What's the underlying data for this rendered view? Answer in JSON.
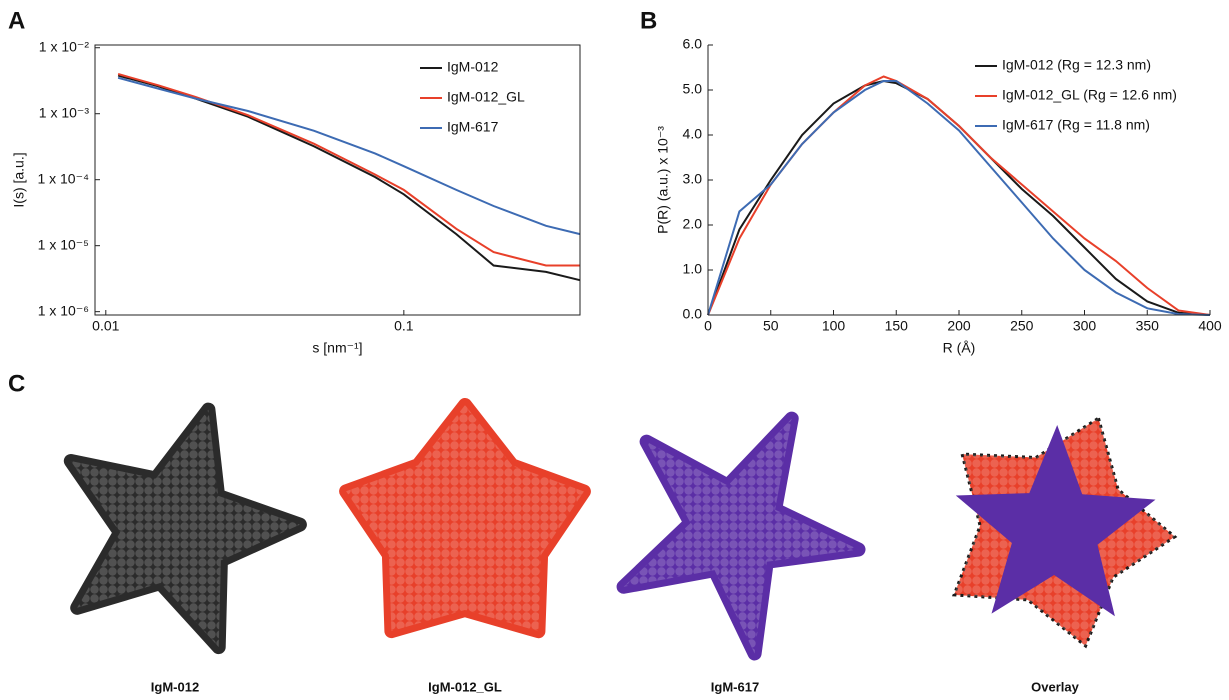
{
  "chart_data": [
    {
      "type": "line",
      "panel": "A",
      "xlabel": "s [nm⁻¹]",
      "ylabel": "I(s) [a.u.]",
      "xscale": "log",
      "yscale": "log",
      "frame": true,
      "xlim": [
        0.0092,
        0.39
      ],
      "ylim": [
        8.9e-07,
        0.011
      ],
      "xticks": [
        0.01,
        0.1
      ],
      "yticks": [
        {
          "value": 1e-06,
          "label": "1 x 10⁻⁶"
        },
        {
          "value": 1e-05,
          "label": "1 x 10⁻⁵"
        },
        {
          "value": 0.0001,
          "label": "1 x 10⁻⁴"
        },
        {
          "value": 0.001,
          "label": "1 x 10⁻³"
        },
        {
          "value": 0.01,
          "label": "1 x 10⁻²"
        }
      ],
      "x": [
        0.011,
        0.015,
        0.02,
        0.03,
        0.05,
        0.08,
        0.1,
        0.15,
        0.2,
        0.3,
        0.39
      ],
      "series": [
        {
          "name": "IgM-012",
          "color": "#1a1a1a",
          "values": [
            0.0038,
            0.0026,
            0.0017,
            0.0009,
            0.00032,
            0.00011,
            6e-05,
            1.5e-05,
            5e-06,
            4e-06,
            3e-06
          ]
        },
        {
          "name": "IgM-012_GL",
          "color": "#e8402a",
          "values": [
            0.004,
            0.0027,
            0.0018,
            0.00095,
            0.00035,
            0.00012,
            7e-05,
            1.8e-05,
            8e-06,
            5e-06,
            5e-06
          ]
        },
        {
          "name": "IgM-617",
          "color": "#3d6bb3",
          "values": [
            0.0035,
            0.0024,
            0.0017,
            0.0011,
            0.00055,
            0.00025,
            0.00016,
            7e-05,
            4e-05,
            2e-05,
            1.5e-05
          ]
        }
      ]
    },
    {
      "type": "line",
      "panel": "B",
      "xlabel": "R (Å)",
      "ylabel": "P(R) (a.u.) x 10⁻³",
      "xscale": "linear",
      "yscale": "linear",
      "frame": false,
      "xlim": [
        0,
        400
      ],
      "ylim": [
        0,
        6
      ],
      "xticks": [
        0,
        50,
        100,
        150,
        200,
        250,
        300,
        350,
        400
      ],
      "yticks": [
        {
          "value": 0,
          "label": "0.0"
        },
        {
          "value": 1,
          "label": "1.0"
        },
        {
          "value": 2,
          "label": "2.0"
        },
        {
          "value": 3,
          "label": "3.0"
        },
        {
          "value": 4,
          "label": "4.0"
        },
        {
          "value": 5,
          "label": "5.0"
        },
        {
          "value": 6,
          "label": "6.0"
        }
      ],
      "x": [
        0,
        25,
        50,
        75,
        100,
        125,
        140,
        150,
        175,
        200,
        225,
        250,
        275,
        300,
        325,
        350,
        375,
        400
      ],
      "series": [
        {
          "name": "IgM-012 (Rg = 12.3 nm)",
          "color": "#1a1a1a",
          "values": [
            0,
            1.9,
            3.0,
            4.0,
            4.7,
            5.1,
            5.2,
            5.15,
            4.8,
            4.2,
            3.5,
            2.8,
            2.2,
            1.5,
            0.8,
            0.3,
            0.05,
            0
          ]
        },
        {
          "name": "IgM-012_GL (Rg = 12.6 nm)",
          "color": "#e8402a",
          "values": [
            0,
            1.7,
            2.9,
            3.8,
            4.5,
            5.1,
            5.3,
            5.2,
            4.8,
            4.2,
            3.5,
            2.9,
            2.3,
            1.7,
            1.2,
            0.6,
            0.1,
            0
          ]
        },
        {
          "name": "IgM-617 (Rg = 11.8 nm)",
          "color": "#3d6bb3",
          "values": [
            0,
            2.3,
            2.9,
            3.8,
            4.5,
            5.0,
            5.2,
            5.2,
            4.7,
            4.1,
            3.3,
            2.5,
            1.7,
            1.0,
            0.5,
            0.15,
            0.02,
            0
          ]
        }
      ]
    }
  ],
  "panel_c": {
    "panel": "C",
    "structures": [
      {
        "label": "IgM-012",
        "color": "#2b2b2b"
      },
      {
        "label": "IgM-012_GL",
        "color": "#e8402a"
      },
      {
        "label": "IgM-617",
        "color": "#5b2ea6"
      },
      {
        "label": "Overlay",
        "color": "#1a1a1a"
      }
    ]
  }
}
